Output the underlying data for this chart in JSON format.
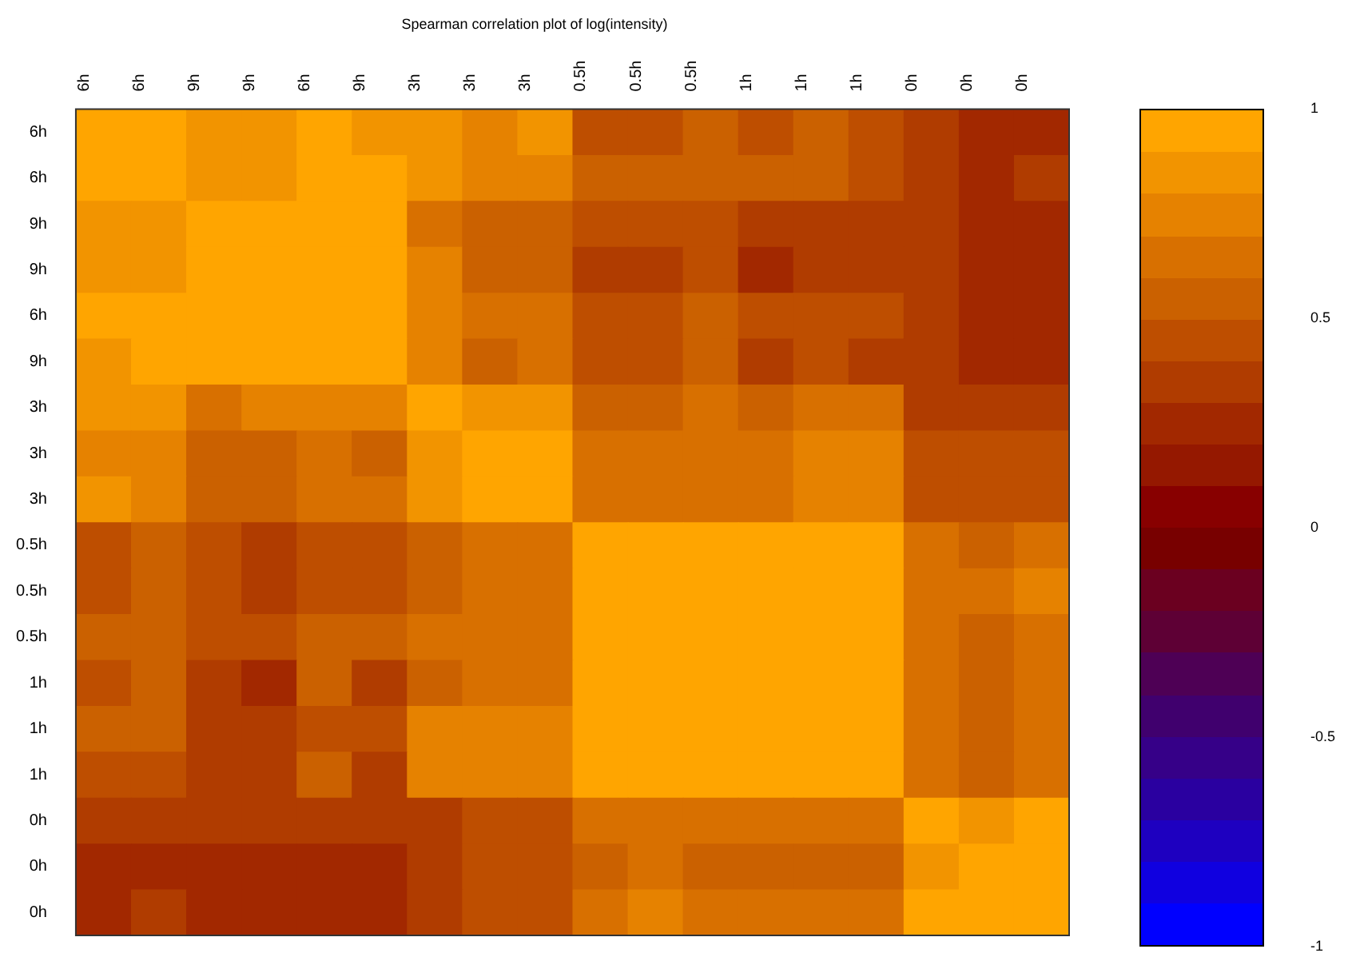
{
  "chart_data": {
    "type": "heatmap",
    "title": "Spearman correlation plot of log(intensity)",
    "categories": [
      "6h",
      "6h",
      "9h",
      "9h",
      "6h",
      "9h",
      "3h",
      "3h",
      "3h",
      "0.5h",
      "0.5h",
      "0.5h",
      "1h",
      "1h",
      "1h",
      "0h",
      "0h",
      "0h"
    ],
    "y_categories": [
      "6h",
      "6h",
      "9h",
      "9h",
      "6h",
      "9h",
      "3h",
      "3h",
      "3h",
      "0.5h",
      "0.5h",
      "0.5h",
      "1h",
      "1h",
      "1h",
      "0h",
      "0h",
      "0h"
    ],
    "cells": [
      [
        0.95,
        0.95,
        0.85,
        0.85,
        0.95,
        0.85,
        0.85,
        0.75,
        0.85,
        0.45,
        0.45,
        0.55,
        0.45,
        0.55,
        0.45,
        0.35,
        0.25,
        0.25
      ],
      [
        0.95,
        0.95,
        0.85,
        0.85,
        0.95,
        0.95,
        0.85,
        0.75,
        0.75,
        0.55,
        0.55,
        0.55,
        0.55,
        0.55,
        0.45,
        0.35,
        0.25,
        0.35
      ],
      [
        0.85,
        0.85,
        0.95,
        0.95,
        0.95,
        0.95,
        0.65,
        0.55,
        0.55,
        0.45,
        0.45,
        0.45,
        0.35,
        0.35,
        0.35,
        0.35,
        0.25,
        0.25
      ],
      [
        0.85,
        0.85,
        0.95,
        0.95,
        0.95,
        0.95,
        0.75,
        0.55,
        0.55,
        0.35,
        0.35,
        0.45,
        0.25,
        0.35,
        0.35,
        0.35,
        0.25,
        0.25
      ],
      [
        0.95,
        0.95,
        0.95,
        0.95,
        0.95,
        0.95,
        0.75,
        0.65,
        0.65,
        0.45,
        0.45,
        0.55,
        0.45,
        0.45,
        0.45,
        0.35,
        0.25,
        0.25
      ],
      [
        0.85,
        0.95,
        0.95,
        0.95,
        0.95,
        0.95,
        0.75,
        0.55,
        0.65,
        0.45,
        0.45,
        0.55,
        0.35,
        0.45,
        0.35,
        0.35,
        0.25,
        0.25
      ],
      [
        0.85,
        0.85,
        0.65,
        0.75,
        0.75,
        0.75,
        0.95,
        0.85,
        0.85,
        0.55,
        0.55,
        0.65,
        0.55,
        0.65,
        0.65,
        0.35,
        0.35,
        0.35
      ],
      [
        0.75,
        0.75,
        0.55,
        0.55,
        0.65,
        0.55,
        0.85,
        0.95,
        0.95,
        0.65,
        0.65,
        0.65,
        0.65,
        0.75,
        0.75,
        0.45,
        0.45,
        0.45
      ],
      [
        0.85,
        0.75,
        0.55,
        0.55,
        0.65,
        0.65,
        0.85,
        0.95,
        0.95,
        0.65,
        0.65,
        0.65,
        0.65,
        0.75,
        0.75,
        0.45,
        0.45,
        0.45
      ],
      [
        0.45,
        0.55,
        0.45,
        0.35,
        0.45,
        0.45,
        0.55,
        0.65,
        0.65,
        0.95,
        0.95,
        0.95,
        0.95,
        0.95,
        0.95,
        0.65,
        0.55,
        0.65
      ],
      [
        0.45,
        0.55,
        0.45,
        0.35,
        0.45,
        0.45,
        0.55,
        0.65,
        0.65,
        0.95,
        0.95,
        0.95,
        0.95,
        0.95,
        0.95,
        0.65,
        0.65,
        0.75
      ],
      [
        0.55,
        0.55,
        0.45,
        0.45,
        0.55,
        0.55,
        0.65,
        0.65,
        0.65,
        0.95,
        0.95,
        0.95,
        0.95,
        0.95,
        0.95,
        0.65,
        0.55,
        0.65
      ],
      [
        0.45,
        0.55,
        0.35,
        0.25,
        0.55,
        0.35,
        0.55,
        0.65,
        0.65,
        0.95,
        0.95,
        0.95,
        0.95,
        0.95,
        0.95,
        0.65,
        0.55,
        0.65
      ],
      [
        0.55,
        0.55,
        0.35,
        0.35,
        0.45,
        0.45,
        0.75,
        0.75,
        0.75,
        0.95,
        0.95,
        0.95,
        0.95,
        0.95,
        0.95,
        0.65,
        0.55,
        0.65
      ],
      [
        0.45,
        0.45,
        0.35,
        0.35,
        0.55,
        0.35,
        0.75,
        0.75,
        0.75,
        0.95,
        0.95,
        0.95,
        0.95,
        0.95,
        0.95,
        0.65,
        0.55,
        0.65
      ],
      [
        0.35,
        0.35,
        0.35,
        0.35,
        0.35,
        0.35,
        0.35,
        0.45,
        0.45,
        0.65,
        0.65,
        0.65,
        0.65,
        0.65,
        0.65,
        0.95,
        0.85,
        0.95
      ],
      [
        0.25,
        0.25,
        0.25,
        0.25,
        0.25,
        0.25,
        0.35,
        0.45,
        0.45,
        0.55,
        0.65,
        0.55,
        0.55,
        0.55,
        0.55,
        0.85,
        0.95,
        0.95
      ],
      [
        0.25,
        0.35,
        0.25,
        0.25,
        0.25,
        0.25,
        0.35,
        0.45,
        0.45,
        0.65,
        0.75,
        0.65,
        0.65,
        0.65,
        0.65,
        0.95,
        0.95,
        0.95
      ]
    ],
    "clim": [
      -1,
      1
    ],
    "cticks": [
      1,
      0.5,
      0,
      -0.5,
      -1
    ]
  }
}
